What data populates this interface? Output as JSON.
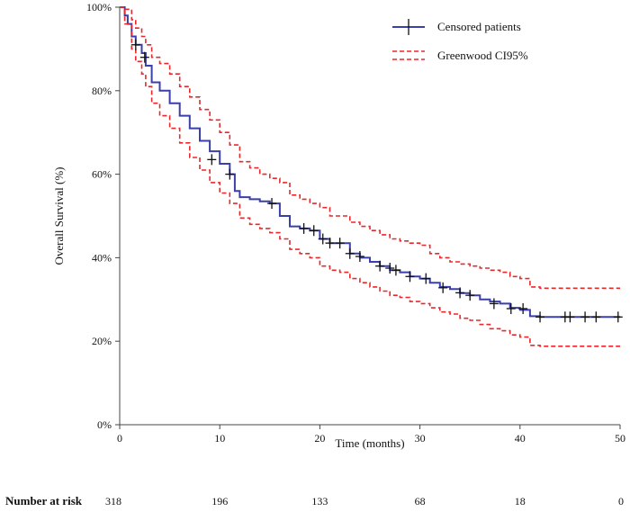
{
  "chart_data": {
    "type": "line",
    "title": "",
    "xlabel": "Time (months)",
    "ylabel": "Overall Survival (%)",
    "xlim": [
      0,
      50
    ],
    "ylim": [
      0,
      100
    ],
    "x_ticks": [
      0,
      10,
      20,
      30,
      40,
      50
    ],
    "x_tick_labels": [
      "0",
      "10",
      "20",
      "30",
      "40",
      "50"
    ],
    "y_ticks": [
      0,
      20,
      40,
      60,
      80,
      100
    ],
    "y_tick_labels": [
      "0%",
      "20%",
      "40%",
      "60%",
      "80%",
      "100%"
    ],
    "grid": false,
    "legend": {
      "position": "top-right",
      "censored_label": "Censored patients",
      "ci_label": "Greenwood CI95%"
    },
    "series": [
      {
        "name": "Overall survival",
        "color": "#3b3fa8",
        "points": [
          [
            0,
            100
          ],
          [
            0.5,
            98
          ],
          [
            0.8,
            96
          ],
          [
            1.2,
            93
          ],
          [
            1.6,
            91
          ],
          [
            2.2,
            89
          ],
          [
            2.6,
            86
          ],
          [
            3.2,
            82
          ],
          [
            4,
            80
          ],
          [
            5,
            77
          ],
          [
            6,
            74
          ],
          [
            7,
            71
          ],
          [
            8,
            68
          ],
          [
            9,
            65.5
          ],
          [
            10,
            62.5
          ],
          [
            11,
            60
          ],
          [
            11.5,
            56
          ],
          [
            12,
            54.5
          ],
          [
            13,
            54
          ],
          [
            14,
            53.5
          ],
          [
            15,
            53
          ],
          [
            16,
            50
          ],
          [
            17,
            47.5
          ],
          [
            18,
            47
          ],
          [
            19,
            46.5
          ],
          [
            20,
            44.5
          ],
          [
            21,
            43.5
          ],
          [
            22,
            43.5
          ],
          [
            23,
            41
          ],
          [
            24,
            40
          ],
          [
            25,
            39
          ],
          [
            26,
            38
          ],
          [
            27,
            37
          ],
          [
            28,
            36.5
          ],
          [
            29,
            35.5
          ],
          [
            30,
            35
          ],
          [
            31,
            34
          ],
          [
            32,
            33
          ],
          [
            33,
            32.5
          ],
          [
            34,
            31.5
          ],
          [
            35,
            31
          ],
          [
            36,
            30
          ],
          [
            37,
            29.5
          ],
          [
            38,
            29
          ],
          [
            39,
            28
          ],
          [
            40,
            27.5
          ],
          [
            41,
            26
          ],
          [
            42,
            25.8
          ],
          [
            50,
            25.8
          ]
        ]
      },
      {
        "name": "Greenwood CI95% upper",
        "color": "#e8282b",
        "points": [
          [
            0,
            100
          ],
          [
            0.5,
            99.5
          ],
          [
            1.2,
            97
          ],
          [
            1.6,
            95
          ],
          [
            2.2,
            93
          ],
          [
            2.6,
            91
          ],
          [
            3.2,
            88
          ],
          [
            4,
            86.5
          ],
          [
            5,
            84
          ],
          [
            6,
            81
          ],
          [
            7,
            78.5
          ],
          [
            8,
            75.5
          ],
          [
            9,
            73
          ],
          [
            10,
            70
          ],
          [
            11,
            67
          ],
          [
            12,
            63
          ],
          [
            13,
            61.5
          ],
          [
            14,
            60
          ],
          [
            15,
            59
          ],
          [
            16,
            58
          ],
          [
            17,
            55
          ],
          [
            18,
            54
          ],
          [
            19,
            53
          ],
          [
            20,
            52
          ],
          [
            21,
            50
          ],
          [
            22,
            50
          ],
          [
            23,
            48.5
          ],
          [
            24,
            47.5
          ],
          [
            25,
            46.5
          ],
          [
            26,
            45.5
          ],
          [
            27,
            44.5
          ],
          [
            28,
            44
          ],
          [
            29,
            43.5
          ],
          [
            30,
            43
          ],
          [
            31,
            41
          ],
          [
            32,
            40
          ],
          [
            33,
            39
          ],
          [
            34,
            38.5
          ],
          [
            35,
            38
          ],
          [
            36,
            37.5
          ],
          [
            37,
            37
          ],
          [
            38,
            36.5
          ],
          [
            39,
            35.5
          ],
          [
            40,
            35
          ],
          [
            41,
            33
          ],
          [
            42,
            32.7
          ],
          [
            50,
            32.7
          ]
        ]
      },
      {
        "name": "Greenwood CI95% lower",
        "color": "#e8282b",
        "points": [
          [
            0,
            100
          ],
          [
            0.5,
            96
          ],
          [
            1.2,
            90
          ],
          [
            1.6,
            87
          ],
          [
            2.2,
            84
          ],
          [
            2.6,
            81
          ],
          [
            3.2,
            77
          ],
          [
            4,
            74
          ],
          [
            5,
            71
          ],
          [
            6,
            67.5
          ],
          [
            7,
            64
          ],
          [
            8,
            61
          ],
          [
            9,
            58
          ],
          [
            10,
            55.5
          ],
          [
            11,
            53
          ],
          [
            12,
            49.5
          ],
          [
            13,
            48
          ],
          [
            14,
            47
          ],
          [
            15,
            46
          ],
          [
            16,
            44.5
          ],
          [
            17,
            42
          ],
          [
            18,
            41
          ],
          [
            19,
            40
          ],
          [
            20,
            38
          ],
          [
            21,
            37
          ],
          [
            22,
            36.5
          ],
          [
            23,
            35
          ],
          [
            24,
            34
          ],
          [
            25,
            33
          ],
          [
            26,
            32
          ],
          [
            27,
            31
          ],
          [
            28,
            30.5
          ],
          [
            29,
            29.5
          ],
          [
            30,
            29
          ],
          [
            31,
            28
          ],
          [
            32,
            27
          ],
          [
            33,
            26.5
          ],
          [
            34,
            25.5
          ],
          [
            35,
            25
          ],
          [
            36,
            24
          ],
          [
            37,
            23
          ],
          [
            38,
            22.5
          ],
          [
            39,
            21.5
          ],
          [
            40,
            21
          ],
          [
            41,
            19
          ],
          [
            42,
            18.8
          ],
          [
            50,
            18.8
          ]
        ]
      }
    ],
    "censored": [
      [
        1.6,
        91
      ],
      [
        2.5,
        88
      ],
      [
        9.2,
        63.5
      ],
      [
        11,
        60
      ],
      [
        15.2,
        53
      ],
      [
        18.4,
        47
      ],
      [
        19.4,
        46.5
      ],
      [
        20.3,
        44.5
      ],
      [
        21,
        43.5
      ],
      [
        22,
        43.5
      ],
      [
        23,
        41
      ],
      [
        24,
        40.3
      ],
      [
        26,
        38
      ],
      [
        27,
        37.5
      ],
      [
        27.6,
        37
      ],
      [
        29,
        35.5
      ],
      [
        30.6,
        35
      ],
      [
        32.3,
        32.8
      ],
      [
        34,
        31.6
      ],
      [
        35,
        31
      ],
      [
        37.4,
        29
      ],
      [
        39.1,
        27.8
      ],
      [
        40.3,
        27.8
      ],
      [
        42,
        25.8
      ],
      [
        44.5,
        25.8
      ],
      [
        45,
        25.8
      ],
      [
        46.5,
        25.8
      ],
      [
        47.6,
        25.8
      ],
      [
        49.8,
        25.8
      ]
    ],
    "number_at_risk": {
      "label": "Number at risk",
      "times": [
        0,
        10,
        20,
        30,
        40,
        50
      ],
      "values": [
        "318",
        "196",
        "133",
        "68",
        "18",
        "0"
      ]
    }
  }
}
